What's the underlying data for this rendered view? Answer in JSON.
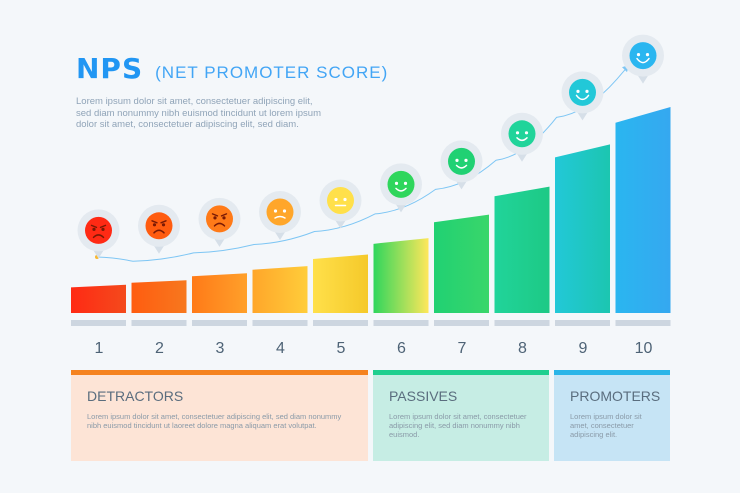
{
  "header": {
    "title": "NPS",
    "subtitle": "(NET PROMOTER SCORE)",
    "description": "Lorem ipsum dolor sit amet, consectetuer adipiscing elit, sed diam nonummy nibh euismod tincidunt ut lorem ipsum dolor sit amet, consectetuer adipiscing elit, sed diam."
  },
  "scores": [
    {
      "label": "1",
      "level": 0.12,
      "color_top": "#ff2a14",
      "color_bottom": "#f44a1c",
      "face": "very-angry"
    },
    {
      "label": "2",
      "level": 0.14,
      "color_top": "#ff5c10",
      "color_bottom": "#f7781e",
      "face": "angry"
    },
    {
      "label": "3",
      "level": 0.17,
      "color_top": "#ff7a18",
      "color_bottom": "#ffa02a",
      "face": "angry"
    },
    {
      "label": "4",
      "level": 0.2,
      "color_top": "#ffa62a",
      "color_bottom": "#ffcd3a",
      "face": "sad"
    },
    {
      "label": "5",
      "level": 0.25,
      "color_top": "#ffe04a",
      "color_bottom": "#f5c92a",
      "face": "neutral"
    },
    {
      "label": "6",
      "level": 0.32,
      "color_top": "#2fd65c",
      "color_bottom": "#ffe75a",
      "face": "smile"
    },
    {
      "label": "7",
      "level": 0.42,
      "color_top": "#20d173",
      "color_bottom": "#3ad66a",
      "face": "smile"
    },
    {
      "label": "8",
      "level": 0.54,
      "color_top": "#20d49a",
      "color_bottom": "#1ec985",
      "face": "smile"
    },
    {
      "label": "9",
      "level": 0.72,
      "color_top": "#22c8d8",
      "color_bottom": "#1cc6b0",
      "face": "grin"
    },
    {
      "label": "10",
      "level": 0.88,
      "color_top": "#2ab6f0",
      "color_bottom": "#35a8f0",
      "face": "grin"
    }
  ],
  "groups": [
    {
      "title": "DETRACTORS",
      "text": "Lorem ipsum dolor sit amet, consectetuer adipiscing elit, sed diam nonummy nibh euismod tincidunt ut laoreet dolore magna aliquam erat volutpat."
    },
    {
      "title": "PASSIVES",
      "text": "Lorem ipsum dolor sit amet, consectetuer adipiscing elit, sed diam nonummy nibh euismod."
    },
    {
      "title": "PROMOTERS",
      "text": "Lorem ipsum dolor sit amet, consectetuer adipiscing elit."
    }
  ]
}
